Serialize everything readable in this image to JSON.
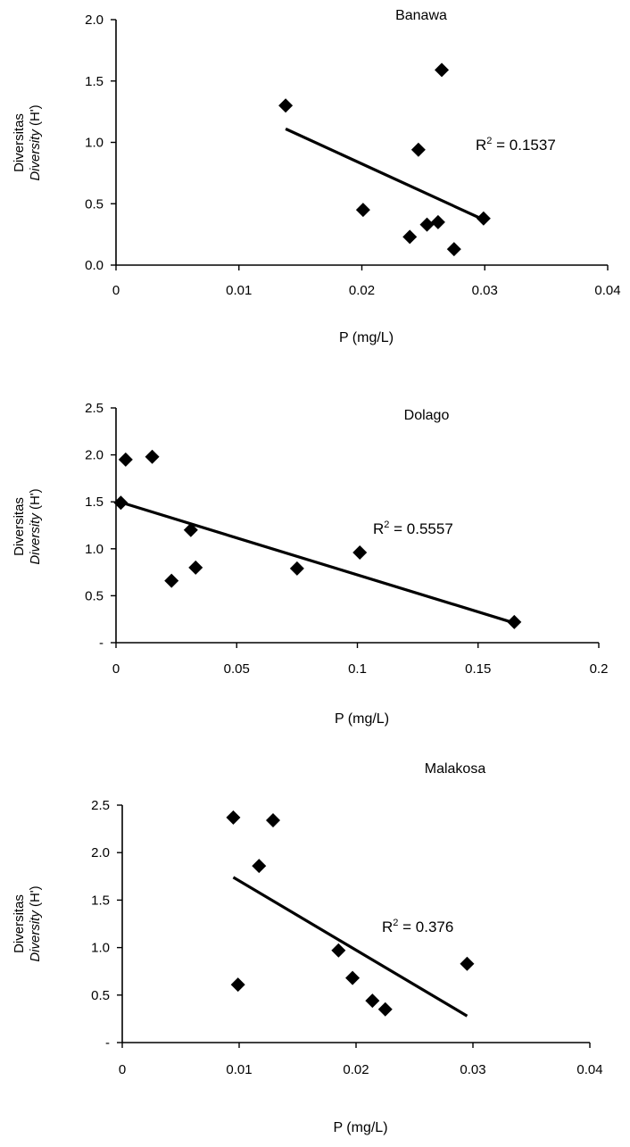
{
  "chart_data": [
    {
      "type": "scatter",
      "title": "Banawa",
      "xlabel": "P (mg/L)",
      "ylabel_line1": "Diversitas",
      "ylabel_line2": "Diversity",
      "ylabel_suffix": "(H')",
      "xlim": [
        0,
        0.04
      ],
      "ylim": [
        0,
        2.0
      ],
      "x_ticks": [
        0,
        0.01,
        0.02,
        0.03,
        0.04
      ],
      "x_tick_labels": [
        "0",
        "0.01",
        "0.02",
        "0.03",
        "0.04"
      ],
      "y_ticks": [
        0,
        0.5,
        1.0,
        1.5,
        2.0
      ],
      "y_tick_labels": [
        "0.0",
        "0.5",
        "1.0",
        "1.5",
        "2.0"
      ],
      "points": [
        {
          "x": 0.0138,
          "y": 1.3
        },
        {
          "x": 0.0201,
          "y": 0.45
        },
        {
          "x": 0.0239,
          "y": 0.23
        },
        {
          "x": 0.0246,
          "y": 0.94
        },
        {
          "x": 0.0253,
          "y": 0.33
        },
        {
          "x": 0.0262,
          "y": 0.35
        },
        {
          "x": 0.0265,
          "y": 1.59
        },
        {
          "x": 0.0275,
          "y": 0.13
        },
        {
          "x": 0.0299,
          "y": 0.38
        }
      ],
      "trendline": {
        "x": [
          0.0138,
          0.0299
        ],
        "y": [
          1.11,
          0.37
        ]
      },
      "r2_prefix": "R",
      "r2_value": " = 0.1537"
    },
    {
      "type": "scatter",
      "title": "Dolago",
      "xlabel": "P (mg/L)",
      "ylabel_line1": "Diversitas",
      "ylabel_line2": "Diversity",
      "ylabel_suffix": "(H')",
      "xlim": [
        0,
        0.2
      ],
      "ylim": [
        0,
        2.5
      ],
      "x_ticks": [
        0,
        0.05,
        0.1,
        0.15,
        0.2
      ],
      "x_tick_labels": [
        "0",
        "0.05",
        "0.1",
        "0.15",
        "0.2"
      ],
      "y_ticks": [
        0,
        0.5,
        1.0,
        1.5,
        2.0,
        2.5
      ],
      "y_tick_labels": [
        "-",
        "0.5",
        "1.0",
        "1.5",
        "2.0",
        "2.5"
      ],
      "points": [
        {
          "x": 0.002,
          "y": 1.49
        },
        {
          "x": 0.004,
          "y": 1.95
        },
        {
          "x": 0.015,
          "y": 1.98
        },
        {
          "x": 0.023,
          "y": 0.66
        },
        {
          "x": 0.031,
          "y": 1.2
        },
        {
          "x": 0.033,
          "y": 0.8
        },
        {
          "x": 0.075,
          "y": 0.79
        },
        {
          "x": 0.101,
          "y": 0.96
        },
        {
          "x": 0.165,
          "y": 0.22
        }
      ],
      "trendline": {
        "x": [
          0.0,
          0.165
        ],
        "y": [
          1.51,
          0.21
        ]
      },
      "r2_prefix": "R",
      "r2_value": " = 0.5557"
    },
    {
      "type": "scatter",
      "title": "Malakosa",
      "xlabel": "P (mg/L)",
      "ylabel_line1": "Diversitas",
      "ylabel_line2": "Diversity",
      "ylabel_suffix": "(H')",
      "xlim": [
        0,
        0.04
      ],
      "ylim": [
        0,
        2.5
      ],
      "x_ticks": [
        0,
        0.01,
        0.02,
        0.03,
        0.04
      ],
      "x_tick_labels": [
        "0",
        "0.01",
        "0.02",
        "0.03",
        "0.04"
      ],
      "y_ticks": [
        0,
        0.5,
        1.0,
        1.5,
        2.0,
        2.5
      ],
      "y_tick_labels": [
        "-",
        "0.5",
        "1.0",
        "1.5",
        "2.0",
        "2.5"
      ],
      "points": [
        {
          "x": 0.0095,
          "y": 2.37
        },
        {
          "x": 0.0099,
          "y": 0.61
        },
        {
          "x": 0.0117,
          "y": 1.86
        },
        {
          "x": 0.0129,
          "y": 2.34
        },
        {
          "x": 0.0185,
          "y": 0.97
        },
        {
          "x": 0.0197,
          "y": 0.68
        },
        {
          "x": 0.0214,
          "y": 0.44
        },
        {
          "x": 0.0225,
          "y": 0.35
        },
        {
          "x": 0.0295,
          "y": 0.83
        }
      ],
      "trendline": {
        "x": [
          0.0095,
          0.0295
        ],
        "y": [
          1.74,
          0.28
        ]
      },
      "r2_prefix": "R",
      "r2_value": " = 0.376"
    }
  ]
}
